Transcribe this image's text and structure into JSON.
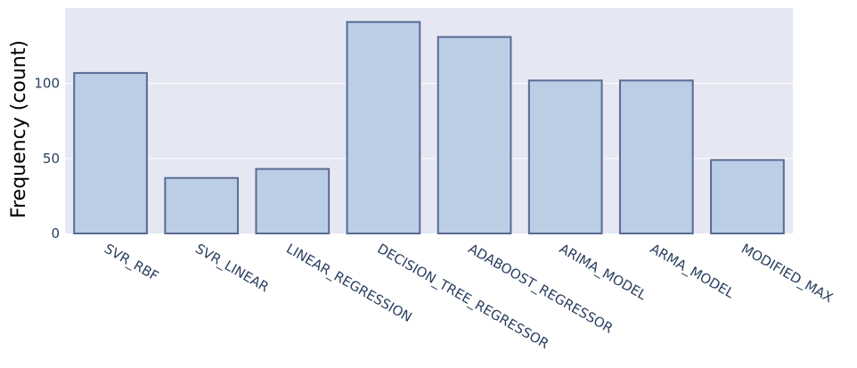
{
  "chart_data": {
    "type": "bar",
    "categories": [
      "SVR_RBF",
      "SVR_LINEAR",
      "LINEAR_REGRESSION",
      "DECISION_TREE_REGRESSOR",
      "ADABOOST_REGRESSOR",
      "ARIMA_MODEL",
      "ARMA_MODEL",
      "MODIFIED_MAX"
    ],
    "values": [
      107,
      37,
      43,
      141,
      131,
      102,
      102,
      49
    ],
    "title": "",
    "xlabel": "",
    "ylabel": "Frequency (count)",
    "ylim": [
      0,
      141
    ],
    "yticks": [
      0,
      50,
      100
    ],
    "grid": true,
    "colors": {
      "plot_bg": "#e5e8f3",
      "bar_fill": "#bccde6",
      "bar_stroke": "#5b6a94",
      "grid": "#ffffff",
      "tick_text": "#2a3f5f"
    }
  }
}
